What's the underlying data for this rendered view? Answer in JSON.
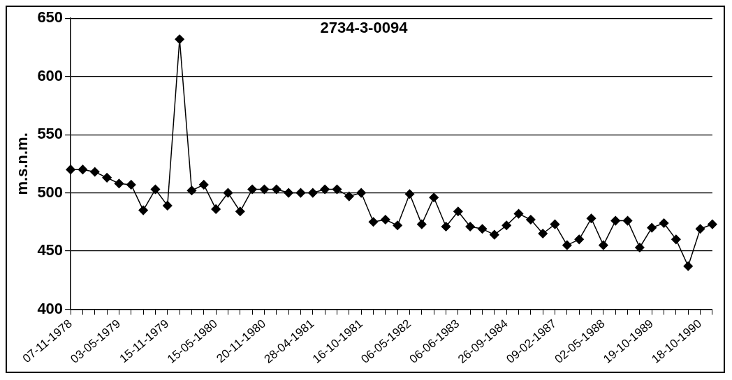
{
  "chart_data": {
    "type": "line",
    "title": "2734-3-0094",
    "ylabel": "m.s.n.m.",
    "categories": [
      "07-11-1978",
      null,
      null,
      null,
      "03-05-1979",
      null,
      null,
      null,
      "15-11-1979",
      null,
      null,
      null,
      "15-05-1980",
      null,
      null,
      null,
      "20-11-1980",
      null,
      null,
      null,
      "28-04-1981",
      null,
      null,
      null,
      "16-10-1981",
      null,
      null,
      null,
      "06-05-1982",
      null,
      null,
      null,
      "06-06-1983",
      null,
      null,
      null,
      "26-09-1984",
      null,
      null,
      null,
      "09-02-1987",
      null,
      null,
      null,
      "02-05-1988",
      null,
      null,
      null,
      "19-10-1989",
      null,
      null,
      null,
      "18-10-1990",
      null
    ],
    "series": [
      {
        "color": "#000000",
        "values": [
          520,
          520,
          518,
          513,
          508,
          507,
          485,
          503,
          489,
          632,
          502,
          507,
          486,
          500,
          484,
          503,
          503,
          503,
          500,
          500,
          500,
          503,
          503,
          497,
          500,
          475,
          477,
          472,
          499,
          473,
          496,
          471,
          484,
          471,
          469,
          464,
          472,
          482,
          477,
          465,
          473,
          455,
          460,
          478,
          455,
          476,
          476,
          453,
          470,
          474,
          460,
          437,
          469,
          473
        ]
      }
    ],
    "ylim": [
      400,
      650
    ],
    "yticks": [
      400,
      450,
      500,
      550,
      600,
      650
    ],
    "grid": "y",
    "legend": false,
    "marker": "diamond",
    "line_style": "solid"
  }
}
